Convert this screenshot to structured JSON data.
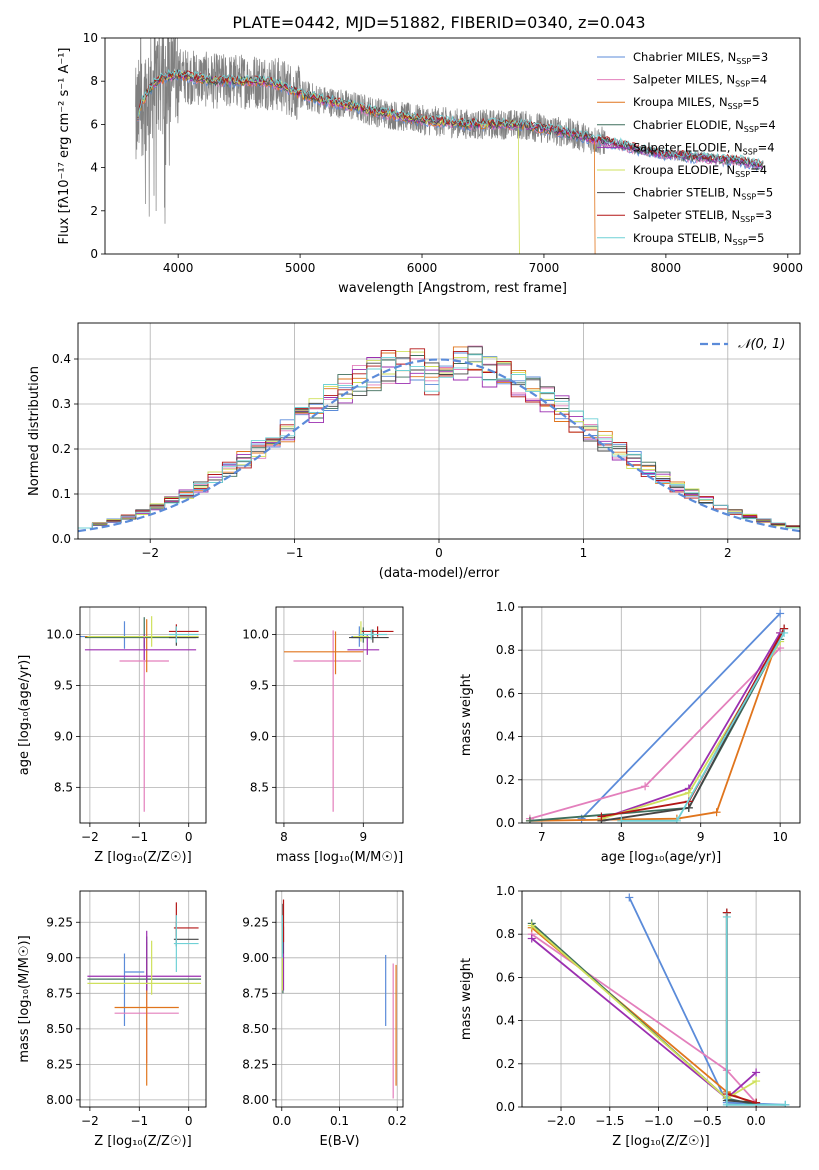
{
  "figure_title": "PLATE=0442, MJD=51882, FIBERID=0340, z=0.043",
  "colors": {
    "c0": "#5b8bd9",
    "c1": "#e37fbc",
    "c2": "#e0751d",
    "c3": "#3e6e5c",
    "c4": "#9b2fb0",
    "c5": "#cfe05c",
    "c6": "#444444",
    "c7": "#b31616",
    "c8": "#6fd1d6",
    "data": "#808080",
    "gauss": "#5b8bd9",
    "grid": "#b0b0b0"
  },
  "chart_data": [
    {
      "id": "spectrum",
      "type": "line",
      "title": "PLATE=0442, MJD=51882, FIBERID=0340, z=0.043",
      "xlabel": "wavelength [Angstrom, rest frame]",
      "ylabel": "Flux [fλ10⁻¹⁷ erg cm⁻² s⁻¹ A⁻¹]",
      "xlim": [
        3400,
        9100
      ],
      "ylim": [
        0,
        10
      ],
      "xticks": [
        4000,
        5000,
        6000,
        7000,
        8000,
        9000
      ],
      "yticks": [
        0,
        2,
        4,
        6,
        8,
        10
      ],
      "grid": false,
      "legend_position": "top-right",
      "data_curve": {
        "x": [
          3650,
          3700,
          3800,
          3900,
          4000,
          4100,
          4300,
          4500,
          4700,
          4850,
          5000,
          5200,
          5400,
          5600,
          5800,
          6000,
          6200,
          6400,
          6600,
          6800,
          7000,
          7200,
          7400,
          7600,
          7800,
          8000,
          8200,
          8400,
          8600,
          8800
        ],
        "y": [
          6.0,
          7.0,
          7.9,
          8.2,
          8.3,
          8.2,
          8.0,
          8.0,
          8.0,
          7.8,
          7.4,
          7.1,
          6.9,
          6.6,
          6.4,
          6.2,
          6.1,
          6.0,
          6.0,
          6.0,
          5.8,
          5.6,
          5.3,
          5.1,
          4.8,
          4.6,
          4.5,
          4.4,
          4.3,
          4.1
        ]
      },
      "legend": [
        {
          "label": "Chabrier MILES",
          "n": "3",
          "color": "c0"
        },
        {
          "label": "Salpeter MILES",
          "n": "4",
          "color": "c1"
        },
        {
          "label": "Kroupa MILES",
          "n": "5",
          "color": "c2"
        },
        {
          "label": "Chabrier ELODIE",
          "n": "4",
          "color": "c3"
        },
        {
          "label": "Salpeter ELODIE",
          "n": "4",
          "color": "c4"
        },
        {
          "label": "Kroupa ELODIE",
          "n": "4",
          "color": "c5"
        },
        {
          "label": "Chabrier STELIB",
          "n": "5",
          "color": "c6"
        },
        {
          "label": "Salpeter STELIB",
          "n": "3",
          "color": "c7"
        },
        {
          "label": "Kroupa STELIB",
          "n": "5",
          "color": "c8"
        }
      ],
      "legend_n_prefix": "N",
      "legend_n_sub": "SSP"
    },
    {
      "id": "residuals",
      "type": "line",
      "xlabel": "(data-model)/error",
      "ylabel": "Normed distribution",
      "xlim": [
        -2.5,
        2.5
      ],
      "ylim": [
        0,
        0.48
      ],
      "xticks": [
        -2,
        -1,
        0,
        1,
        2
      ],
      "xticklabels": [
        "−2",
        "−1",
        "0",
        "1",
        "2"
      ],
      "yticks": [
        0.0,
        0.1,
        0.2,
        0.3,
        0.4
      ],
      "yticklabels": [
        "0.0",
        "0.1",
        "0.2",
        "0.3",
        "0.4"
      ],
      "grid": true,
      "legend_position": "top-right",
      "legend_label": "𝒩(0, 1)",
      "bin_width": 0.1,
      "bin_start": -2.5
    },
    {
      "id": "age-vs-Z",
      "type": "scatter",
      "xlabel": "Z [log₁₀(Z/Z☉)]",
      "ylabel": "age  [log₁₀(age/yr)]",
      "xlim": [
        -2.2,
        0.35
      ],
      "ylim": [
        8.15,
        10.27
      ],
      "xticks": [
        -2,
        -1,
        0
      ],
      "xticklabels": [
        "−2",
        "−1",
        "0"
      ],
      "yticks": [
        8.5,
        9.0,
        9.5,
        10.0
      ],
      "yticklabels": [
        "8.5",
        "9.0",
        "9.5",
        "10.0"
      ],
      "grid": true,
      "points": [
        {
          "x": -1.3,
          "y": 9.98,
          "xerr": [
            0.9,
            0.9
          ],
          "yerr": [
            0.12,
            0.15
          ],
          "color": "c0"
        },
        {
          "x": -0.9,
          "y": 9.74,
          "xerr": [
            0.5,
            0.5
          ],
          "yerr": [
            1.48,
            0.2
          ],
          "color": "c1"
        },
        {
          "x": -0.85,
          "y": 9.98,
          "xerr": [
            1.25,
            1.05
          ],
          "yerr": [
            0.35,
            0.17
          ],
          "color": "c2"
        },
        {
          "x": -0.9,
          "y": 9.97,
          "xerr": [
            1.2,
            1.05
          ],
          "yerr": [
            0.1,
            0.2
          ],
          "color": "c3"
        },
        {
          "x": -0.9,
          "y": 9.85,
          "xerr": [
            1.2,
            1.05
          ],
          "yerr": [
            0.1,
            0.15
          ],
          "color": "c4"
        },
        {
          "x": -0.75,
          "y": 9.98,
          "xerr": [
            1.3,
            0.95
          ],
          "yerr": [
            0.1,
            0.2
          ],
          "color": "c5"
        },
        {
          "x": -0.25,
          "y": 9.97,
          "xerr": [
            0.15,
            0.45
          ],
          "yerr": [
            0.08,
            0.1
          ],
          "color": "c6"
        },
        {
          "x": -0.25,
          "y": 10.03,
          "xerr": [
            0.15,
            0.45
          ],
          "yerr": [
            0.07,
            0.07
          ],
          "color": "c7"
        },
        {
          "x": -0.25,
          "y": 10.0,
          "xerr": [
            0.15,
            0.45
          ],
          "yerr": [
            0.08,
            0.08
          ],
          "color": "c8"
        }
      ]
    },
    {
      "id": "age-vs-mass",
      "type": "scatter",
      "xlabel": "mass [log₁₀(M/M☉)]",
      "xlim": [
        7.9,
        9.5
      ],
      "ylim": [
        8.15,
        10.27
      ],
      "xticks": [
        8,
        9
      ],
      "xticklabels": [
        "8",
        "9"
      ],
      "yticks": [
        8.5,
        9.0,
        9.5,
        10.0
      ],
      "yticklabels": [
        "8.5",
        "9.0",
        "9.5",
        "10.0"
      ],
      "grid": true,
      "points": [
        {
          "x": 8.95,
          "y": 9.98,
          "xerr": [
            0.1,
            0.1
          ],
          "yerr": [
            0.1,
            0.1
          ],
          "color": "c0"
        },
        {
          "x": 8.62,
          "y": 9.74,
          "xerr": [
            0.5,
            0.35
          ],
          "yerr": [
            1.48,
            0.3
          ],
          "color": "c1"
        },
        {
          "x": 8.65,
          "y": 9.83,
          "xerr": [
            0.65,
            0.35
          ],
          "yerr": [
            0.22,
            0.2
          ],
          "color": "c2"
        },
        {
          "x": 9.0,
          "y": 9.97,
          "xerr": [
            0.15,
            0.1
          ],
          "yerr": [
            0.05,
            0.1
          ],
          "color": "c3"
        },
        {
          "x": 9.05,
          "y": 9.85,
          "xerr": [
            0.25,
            0.15
          ],
          "yerr": [
            0.05,
            0.15
          ],
          "color": "c4"
        },
        {
          "x": 8.97,
          "y": 9.98,
          "xerr": [
            0.1,
            0.1
          ],
          "yerr": [
            0.05,
            0.15
          ],
          "color": "c5"
        },
        {
          "x": 9.12,
          "y": 9.97,
          "xerr": [
            0.3,
            0.2
          ],
          "yerr": [
            0.05,
            0.08
          ],
          "color": "c6"
        },
        {
          "x": 9.18,
          "y": 10.03,
          "xerr": [
            0.2,
            0.2
          ],
          "yerr": [
            0.05,
            0.05
          ],
          "color": "c7"
        },
        {
          "x": 9.1,
          "y": 10.0,
          "xerr": [
            0.15,
            0.2
          ],
          "yerr": [
            0.05,
            0.05
          ],
          "color": "c8"
        }
      ]
    },
    {
      "id": "weight-vs-age",
      "type": "line",
      "xlabel": "age  [log₁₀(age/yr)]",
      "ylabel": "mass weight",
      "xlim": [
        6.75,
        10.25
      ],
      "ylim": [
        0,
        1.0
      ],
      "xticks": [
        7,
        8,
        9,
        10
      ],
      "xticklabels": [
        "7",
        "8",
        "9",
        "10"
      ],
      "yticks": [
        0.0,
        0.2,
        0.4,
        0.6,
        0.8,
        1.0
      ],
      "yticklabels": [
        "0.0",
        "0.2",
        "0.4",
        "0.6",
        "0.8",
        "1.0"
      ],
      "grid": true,
      "series": [
        {
          "color": "c0",
          "x": [
            7.5,
            10.0
          ],
          "y": [
            0.02,
            0.97
          ]
        },
        {
          "color": "c1",
          "x": [
            6.85,
            8.3,
            10.0
          ],
          "y": [
            0.02,
            0.17,
            0.81
          ]
        },
        {
          "color": "c2",
          "x": [
            6.85,
            8.7,
            9.2,
            10.0
          ],
          "y": [
            0.01,
            0.02,
            0.05,
            0.88
          ]
        },
        {
          "color": "c3",
          "x": [
            6.85,
            8.85,
            10.0
          ],
          "y": [
            0.01,
            0.07,
            0.85
          ]
        },
        {
          "color": "c4",
          "x": [
            7.75,
            8.85,
            10.0
          ],
          "y": [
            0.02,
            0.16,
            0.88
          ]
        },
        {
          "color": "c5",
          "x": [
            7.75,
            8.85,
            10.0
          ],
          "y": [
            0.02,
            0.14,
            0.84
          ]
        },
        {
          "color": "c6",
          "x": [
            7.75,
            8.85,
            10.05
          ],
          "y": [
            0.01,
            0.07,
            0.9
          ]
        },
        {
          "color": "c7",
          "x": [
            7.75,
            8.85,
            10.05
          ],
          "y": [
            0.03,
            0.1,
            0.9
          ]
        },
        {
          "color": "c8",
          "x": [
            8.0,
            8.7,
            10.05
          ],
          "y": [
            0.01,
            0.01,
            0.88
          ]
        }
      ]
    },
    {
      "id": "mass-vs-Z",
      "type": "scatter",
      "xlabel": "Z [log₁₀(Z/Z☉)]",
      "ylabel": "mass [log₁₀(M/M☉)]",
      "xlim": [
        -2.2,
        0.35
      ],
      "ylim": [
        7.95,
        9.47
      ],
      "xticks": [
        -2,
        -1,
        0
      ],
      "xticklabels": [
        "−2",
        "−1",
        "0"
      ],
      "yticks": [
        8.0,
        8.25,
        8.5,
        8.75,
        9.0,
        9.25
      ],
      "yticklabels": [
        "8.00",
        "8.25",
        "8.50",
        "8.75",
        "9.00",
        "9.25"
      ],
      "grid": true,
      "points": [
        {
          "x": -1.3,
          "y": 8.9,
          "xerr": [
            0.0,
            0.4
          ],
          "yerr": [
            0.38,
            0.13
          ],
          "color": "c0"
        },
        {
          "x": -0.85,
          "y": 8.61,
          "xerr": [
            0.65,
            0.65
          ],
          "yerr": [
            0.35,
            0.5
          ],
          "color": "c1"
        },
        {
          "x": -0.85,
          "y": 8.65,
          "xerr": [
            0.65,
            0.65
          ],
          "yerr": [
            0.55,
            0.35
          ],
          "color": "c2"
        },
        {
          "x": -0.85,
          "y": 8.85,
          "xerr": [
            1.2,
            1.1
          ],
          "yerr": [
            0.08,
            0.3
          ],
          "color": "c3"
        },
        {
          "x": -0.85,
          "y": 8.87,
          "xerr": [
            1.2,
            1.1
          ],
          "yerr": [
            0.1,
            0.32
          ],
          "color": "c4"
        },
        {
          "x": -0.75,
          "y": 8.82,
          "xerr": [
            1.3,
            1.0
          ],
          "yerr": [
            0.08,
            0.3
          ],
          "color": "c5"
        },
        {
          "x": -0.25,
          "y": 9.13,
          "xerr": [
            0.05,
            0.45
          ],
          "yerr": [
            0.05,
            0.12
          ],
          "color": "c6"
        },
        {
          "x": -0.25,
          "y": 9.21,
          "xerr": [
            0.05,
            0.45
          ],
          "yerr": [
            0.06,
            0.18
          ],
          "color": "c7"
        },
        {
          "x": -0.25,
          "y": 9.1,
          "xerr": [
            0.05,
            0.45
          ],
          "yerr": [
            0.2,
            0.2
          ],
          "color": "c8"
        }
      ]
    },
    {
      "id": "mass-vs-EBV",
      "type": "scatter",
      "xlabel": "E(B-V)",
      "xlim": [
        -0.01,
        0.21
      ],
      "ylim": [
        7.95,
        9.47
      ],
      "xticks": [
        0.0,
        0.1,
        0.2
      ],
      "xticklabels": [
        "0.0",
        "0.1",
        "0.2"
      ],
      "yticks": [
        8.0,
        8.25,
        8.5,
        8.75,
        9.0,
        9.25
      ],
      "yticklabels": [
        "8.00",
        "8.25",
        "8.50",
        "8.75",
        "9.00",
        "9.25"
      ],
      "grid": true,
      "points": [
        {
          "x": 0.18,
          "y": 8.9,
          "xerr": [
            0.0,
            0.0
          ],
          "yerr": [
            0.38,
            0.12
          ],
          "color": "c0"
        },
        {
          "x": 0.193,
          "y": 8.61,
          "xerr": [
            0.0,
            0.0
          ],
          "yerr": [
            0.6,
            0.35
          ],
          "color": "c1"
        },
        {
          "x": 0.198,
          "y": 8.65,
          "xerr": [
            0.0,
            0.0
          ],
          "yerr": [
            0.55,
            0.3
          ],
          "color": "c2"
        },
        {
          "x": 0.002,
          "y": 8.85,
          "xerr": [
            0.0,
            0.0
          ],
          "yerr": [
            0.1,
            0.3
          ],
          "color": "c3"
        },
        {
          "x": 0.003,
          "y": 8.87,
          "xerr": [
            0.0,
            0.0
          ],
          "yerr": [
            0.1,
            0.35
          ],
          "color": "c4"
        },
        {
          "x": 0.001,
          "y": 8.82,
          "xerr": [
            0.0,
            0.0
          ],
          "yerr": [
            0.05,
            0.4
          ],
          "color": "c5"
        },
        {
          "x": 0.002,
          "y": 9.13,
          "xerr": [
            0.0,
            0.0
          ],
          "yerr": [
            0.1,
            0.25
          ],
          "color": "c6"
        },
        {
          "x": 0.003,
          "y": 9.21,
          "xerr": [
            0.0,
            0.0
          ],
          "yerr": [
            0.1,
            0.2
          ],
          "color": "c7"
        },
        {
          "x": 0.001,
          "y": 9.1,
          "xerr": [
            0.0,
            0.0
          ],
          "yerr": [
            0.1,
            0.2
          ],
          "color": "c8"
        }
      ]
    },
    {
      "id": "weight-vs-Z",
      "type": "line",
      "xlabel": "Z [log₁₀(Z/Z☉)]",
      "ylabel": "mass weight",
      "xlim": [
        -2.4,
        0.45
      ],
      "ylim": [
        0,
        1.0
      ],
      "xticks": [
        -2.0,
        -1.5,
        -1.0,
        -0.5,
        0.0
      ],
      "xticklabels": [
        "−2.0",
        "−1.5",
        "−1.0",
        "−0.5",
        "0.0"
      ],
      "yticks": [
        0.0,
        0.2,
        0.4,
        0.6,
        0.8,
        1.0
      ],
      "yticklabels": [
        "0.0",
        "0.2",
        "0.4",
        "0.6",
        "0.8",
        "1.0"
      ],
      "grid": true,
      "series": [
        {
          "color": "c0",
          "x": [
            -1.3,
            -0.3,
            0.3
          ],
          "y": [
            0.97,
            0.02,
            0.01
          ]
        },
        {
          "color": "c1",
          "x": [
            -2.3,
            -0.3,
            0.0
          ],
          "y": [
            0.8,
            0.17,
            0.02
          ]
        },
        {
          "color": "c2",
          "x": [
            -2.3,
            -0.3,
            0.0
          ],
          "y": [
            0.83,
            0.07,
            0.01
          ]
        },
        {
          "color": "c3",
          "x": [
            -2.3,
            -0.3,
            0.0
          ],
          "y": [
            0.85,
            0.04,
            0.01
          ]
        },
        {
          "color": "c4",
          "x": [
            -2.3,
            -0.3,
            0.0
          ],
          "y": [
            0.78,
            0.04,
            0.16
          ]
        },
        {
          "color": "c5",
          "x": [
            -2.3,
            -0.3,
            0.0
          ],
          "y": [
            0.84,
            0.04,
            0.12
          ]
        },
        {
          "color": "c6",
          "x": [
            -0.3,
            -0.3,
            0.0
          ],
          "y": [
            0.9,
            0.03,
            0.02
          ]
        },
        {
          "color": "c7",
          "x": [
            -0.3,
            -0.3,
            0.0
          ],
          "y": [
            0.9,
            0.06,
            0.02
          ]
        },
        {
          "color": "c8",
          "x": [
            -0.3,
            -0.3,
            0.3
          ],
          "y": [
            0.88,
            0.01,
            0.01
          ]
        }
      ]
    }
  ]
}
